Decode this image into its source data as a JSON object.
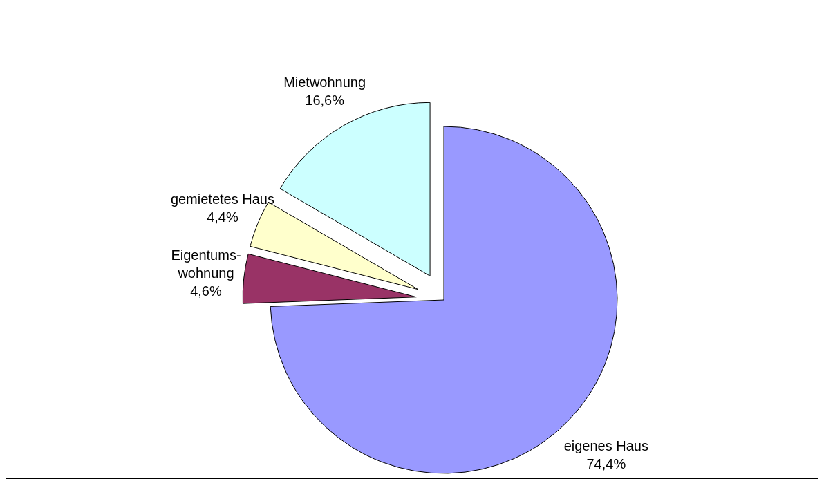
{
  "chart_data": {
    "type": "pie",
    "categories": [
      "eigenes Haus",
      "Eigentums-\nwohnung",
      "gemietetes Haus",
      "Mietwohnung"
    ],
    "values": [
      74.4,
      4.6,
      4.4,
      16.6
    ],
    "value_labels": [
      "74,4%",
      "4,6%",
      "4,4%",
      "16,6%"
    ],
    "colors": [
      "#9999ff",
      "#993366",
      "#ffffcc",
      "#ccffff"
    ],
    "legend": false
  }
}
